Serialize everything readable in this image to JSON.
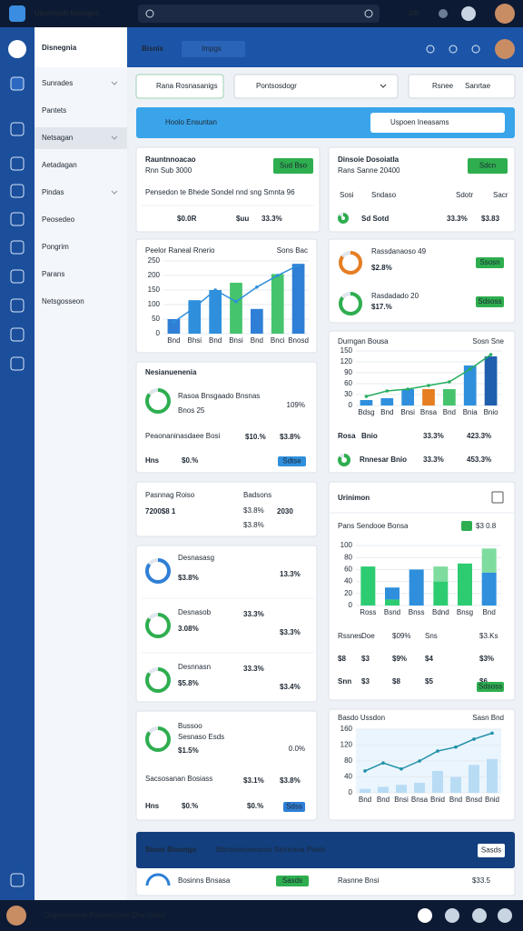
{
  "topbar": {
    "title": "Ubotegnh Ikomgra",
    "badge": "2/6"
  },
  "sidebar": {
    "title": "Disnegnia",
    "items": [
      "Sunrades",
      "Pantets",
      "Netsagan",
      "Aetadagan",
      "Pindas",
      "Peosedeo",
      "Pongrim",
      "Parans",
      "Netsgosseon"
    ]
  },
  "header": {
    "title": "Bisnis",
    "tab": "Impgs"
  },
  "toolbar": {
    "filter": "Rana Rosnasanigs",
    "select": "Pontsosdogr",
    "action_label": "Rsnee",
    "action_value": "Sanrtae"
  },
  "banner": {
    "title": "Hoolo Ensuntan",
    "search": "Uspoen Ineasams"
  },
  "revenue": {
    "title": "Rauntnnoacao",
    "subtitle": "Rnn Sub 3000",
    "button": "Sud Bso",
    "note": "Pensedon te Bhede Sondel nnd sng Smnta 96",
    "stats": [
      "$0.0R",
      "$uu",
      "33.3%"
    ]
  },
  "dividend": {
    "title": "Dinsoie Dosoiatla",
    "subtitle": "Rans Sanne 20400",
    "button": "Sdcn",
    "columns": [
      "Sosi",
      "Sndaso",
      "Sdotr",
      "Sacr"
    ],
    "stats": [
      "Sd Sotd",
      "33.3%",
      "$3.83"
    ]
  },
  "growth": {
    "title": "Peelor Raneal Rnerio",
    "legend": "Sons Bac",
    "categories": [
      "Bnd",
      "Bhsi",
      "Bnd",
      "Bnsi",
      "Bnd",
      "Bnci",
      "Bnosd"
    ],
    "values": [
      50,
      115,
      150,
      175,
      85,
      205,
      240
    ],
    "colors": [
      "#2f7fd6",
      "#2f8fdc",
      "#2f8fdc",
      "#45c46d",
      "#2f7fd6",
      "#45c46d",
      "#2f7fd6"
    ],
    "line": [
      40,
      90,
      150,
      110,
      160,
      200,
      235
    ],
    "line_color": "#2f8fdc",
    "ylim": [
      0,
      250
    ],
    "yticks": [
      0,
      50,
      100,
      150,
      200,
      250
    ]
  },
  "rings": {
    "items": [
      {
        "title": "Rassdanaoso 49",
        "value": "$2.8%",
        "button": "Ssosn"
      },
      {
        "title": "Rasdadado 20",
        "value": "$17.%",
        "button": "Sdsoss"
      }
    ]
  },
  "duration": {
    "title": "Durngan Bousa",
    "legend": "Sosn Sne",
    "categories": [
      "Bdsg",
      "Bnd",
      "Bnsi",
      "Bnsa",
      "Bnd",
      "Bnia",
      "Bnio"
    ],
    "values": [
      15,
      20,
      45,
      45,
      45,
      110,
      135
    ],
    "colors": [
      "#2f8fdc",
      "#2f8fdc",
      "#2f8fdc",
      "#e67e22",
      "#45c46d",
      "#2f8fdc",
      "#1f5fae"
    ],
    "line": [
      25,
      40,
      45,
      55,
      65,
      100,
      140
    ],
    "line_color": "#27ae60",
    "ylim": [
      0,
      150
    ],
    "yticks": [
      0,
      30,
      60,
      90,
      120,
      150
    ],
    "rows": [
      [
        "Rosa",
        "Bnio",
        "33.3%",
        "423.3%"
      ],
      [
        "Rnnesar Bnio",
        "33.3%",
        "453.3%"
      ]
    ]
  },
  "navigator": {
    "title": "Nesianuenenia",
    "legend": "Rasoa Bnsgaado Bnsnas",
    "sub": "Bnos 25",
    "pct": "109%",
    "row1": [
      "Peaonaninasdaee Bosi",
      "$10.%",
      "$3.8%"
    ],
    "row2": [
      "Hns",
      "$0.%"
    ],
    "button": "Sdtse"
  },
  "summary": {
    "title": "Pasnnag Roiso",
    "sub": "Badsons",
    "big": "7200$8 1",
    "big2": "2030",
    "pcts": [
      "$3.8%",
      "$3.8%"
    ]
  },
  "utilization": {
    "title": "Urinimon",
    "chart_title": "Pans Sendooe Bonsa",
    "chart_value": "$3 0.8",
    "categories": [
      "Ross",
      "Bsnd",
      "Bnss",
      "Bdnd",
      "Bnsg",
      "Bnd"
    ],
    "series": [
      {
        "color": "#2ecc71",
        "values": [
          65,
          10,
          0,
          40,
          70,
          0
        ]
      },
      {
        "color": "#2f8fdc",
        "values": [
          0,
          20,
          60,
          0,
          0,
          55
        ]
      },
      {
        "color": "#7fdc9f",
        "values": [
          0,
          0,
          0,
          25,
          0,
          40
        ]
      }
    ],
    "ylim": [
      0,
      100
    ],
    "yticks": [
      0,
      20,
      40,
      60,
      80,
      100
    ],
    "rows": [
      [
        "Rssnes",
        "Doe",
        "$09%",
        "Sns",
        "$3.Ks"
      ],
      [
        "$8",
        "$3",
        "$9%",
        "$4",
        "$3%"
      ],
      [
        "Snn",
        "$3",
        "$8",
        "$5",
        "$6"
      ]
    ],
    "button": "Sdsoss"
  },
  "donuts": {
    "items": [
      {
        "title": "Desnasasg",
        "value": "$3.8%",
        "stats": [
          "13.3%"
        ]
      },
      {
        "title": "Desnasob",
        "value": "3.08%",
        "stats": [
          "33.3%",
          "$3.3%"
        ]
      },
      {
        "title": "Desnnasn",
        "value": "$5.8%",
        "stats": [
          "33.3%",
          "$3.4%"
        ]
      }
    ]
  },
  "goals": {
    "title": "Bussoo",
    "sub": "Sesnaso Esds",
    "value": "$1.5%",
    "pct": "0.0%",
    "row1": [
      "Sacsosanan Bosiass",
      "$3.1%",
      "$3.8%"
    ],
    "row2": [
      "Hns",
      "$0.%",
      "$0.%"
    ],
    "button": "Sdss"
  },
  "forecast": {
    "title": "Basdo Ussdon",
    "legend": "Sasn Bnd",
    "categories": [
      "Bnd",
      "Bnd",
      "Bnsi",
      "Bnsa",
      "Bnid",
      "Bnd",
      "Bnsd",
      "Bnid"
    ],
    "values": [
      10,
      15,
      20,
      25,
      55,
      40,
      70,
      85
    ],
    "colors": [
      "#b9dcf5",
      "#b9dcf5",
      "#b9dcf5",
      "#b9dcf5",
      "#b9dcf5",
      "#b9dcf5",
      "#b9dcf5",
      "#b9dcf5"
    ],
    "line": [
      55,
      75,
      60,
      80,
      105,
      115,
      135,
      150
    ],
    "line_color": "#1f8fa8",
    "ylim": [
      0,
      160
    ],
    "yticks": [
      0,
      40,
      80,
      120,
      160
    ]
  },
  "footer_panel": {
    "title": "Sioos Bioongo",
    "subtitle": "Bbnooseosoosoo Sionnasa",
    "link": "Pasto",
    "button": "Sasds",
    "row": [
      "Bosinns Bnsasa",
      "Sasds",
      "Rasnne Bnsi",
      "$33.5"
    ]
  },
  "bottombar": {
    "text": "Osgonmanoe Rosnanosns Dha Isioss"
  }
}
